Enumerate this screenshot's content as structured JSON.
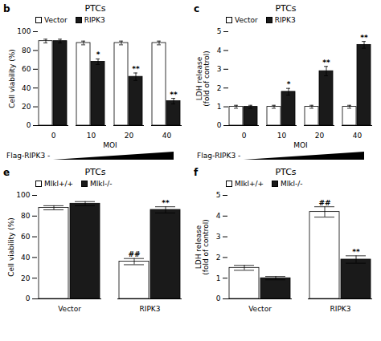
{
  "chart_data": [
    {
      "type": "bar",
      "panel_label": "b",
      "title": "PTCs",
      "xlabel": "MOI",
      "ylabel": "Cell viability (%)",
      "categories": [
        "0",
        "10",
        "20",
        "40"
      ],
      "series": [
        {
          "name": "Vector",
          "color": "#ffffff",
          "values": [
            90,
            88,
            88,
            88
          ],
          "errors": [
            2,
            2,
            2,
            2
          ]
        },
        {
          "name": "RIPK3",
          "color": "#1a1a1a",
          "values": [
            90,
            68,
            52,
            26
          ],
          "errors": [
            2,
            3,
            4,
            3
          ],
          "significance": [
            null,
            "*",
            "**",
            "**"
          ]
        }
      ],
      "ylim": [
        0,
        100
      ],
      "yticks": [
        0,
        20,
        40,
        60,
        80,
        100
      ],
      "legend": "upper left",
      "annotations": [
        "Flag-RIPK3 -"
      ]
    },
    {
      "type": "bar",
      "panel_label": "c",
      "title": "PTCs",
      "xlabel": "MOI",
      "ylabel": "LDH release\n(fold of control)",
      "categories": [
        "0",
        "10",
        "20",
        "40"
      ],
      "series": [
        {
          "name": "Vector",
          "color": "#ffffff",
          "values": [
            1.0,
            1.0,
            1.0,
            1.0
          ],
          "errors": [
            0.08,
            0.08,
            0.08,
            0.08
          ]
        },
        {
          "name": "RIPK3",
          "color": "#1a1a1a",
          "values": [
            1.0,
            1.8,
            2.9,
            4.3
          ],
          "errors": [
            0.08,
            0.18,
            0.25,
            0.18
          ],
          "significance": [
            null,
            "*",
            "**",
            "**"
          ]
        }
      ],
      "ylim": [
        0,
        5
      ],
      "yticks": [
        0,
        1,
        2,
        3,
        4,
        5
      ],
      "legend": "upper left",
      "annotations": [
        "Flag-RIPK3 -"
      ]
    },
    {
      "type": "bar",
      "panel_label": "e",
      "title": "PTCs",
      "ylabel": "Cell viability (%)",
      "categories": [
        "Vector",
        "RIPK3"
      ],
      "series": [
        {
          "name": "Mlkl+/+",
          "color": "#ffffff",
          "values": [
            88,
            36
          ],
          "errors": [
            2,
            3
          ],
          "significance": [
            null,
            "##"
          ]
        },
        {
          "name": "Mlkl-/-",
          "color": "#1a1a1a",
          "values": [
            92,
            86
          ],
          "errors": [
            2,
            3
          ],
          "significance": [
            null,
            "**"
          ]
        }
      ],
      "ylim": [
        0,
        100
      ],
      "yticks": [
        0,
        20,
        40,
        60,
        80,
        100
      ],
      "legend": "upper left"
    },
    {
      "type": "bar",
      "panel_label": "f",
      "title": "PTCs",
      "ylabel": "LDH release\n(fold of control)",
      "categories": [
        "Vector",
        "RIPK3"
      ],
      "series": [
        {
          "name": "Mlkl+/+",
          "color": "#ffffff",
          "values": [
            1.5,
            4.2
          ],
          "errors": [
            0.12,
            0.25
          ],
          "significance": [
            null,
            "##"
          ]
        },
        {
          "name": "Mlkl-/-",
          "color": "#1a1a1a",
          "values": [
            1.0,
            1.9
          ],
          "errors": [
            0.08,
            0.18
          ],
          "significance": [
            null,
            "**"
          ]
        }
      ],
      "ylim": [
        0,
        5
      ],
      "yticks": [
        0,
        1,
        2,
        3,
        4,
        5
      ],
      "legend": "upper left"
    }
  ]
}
